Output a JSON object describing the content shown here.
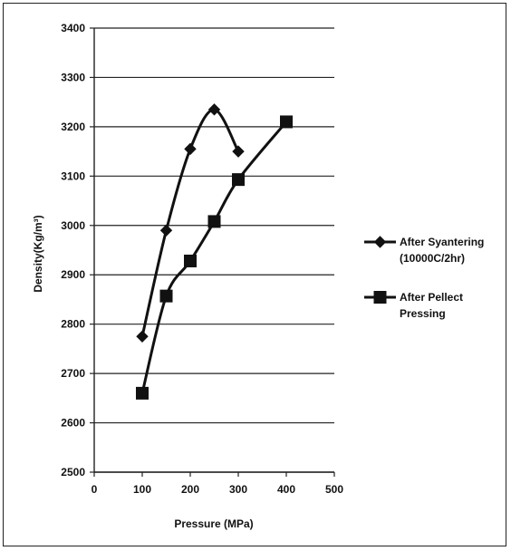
{
  "chart_data": {
    "type": "line",
    "title": "",
    "xlabel": "Pressure (MPa)",
    "ylabel": "Density(Kg/m³)",
    "xlim": [
      0,
      500
    ],
    "ylim": [
      2500,
      3400
    ],
    "x_ticks": [
      "0",
      "100",
      "200",
      "300",
      "400",
      "500"
    ],
    "y_ticks": [
      "2500",
      "2600",
      "2700",
      "2800",
      "2900",
      "3000",
      "3100",
      "3200",
      "3300",
      "3400"
    ],
    "grid": "horizontal",
    "legend_position": "right",
    "series": [
      {
        "name": "After Syantering (10000C/2hr)",
        "marker": "diamond",
        "color": "#111111",
        "x": [
          100,
          150,
          200,
          250,
          300
        ],
        "y": [
          2775,
          2990,
          3155,
          3235,
          3150
        ]
      },
      {
        "name": "After Pellect Pressing",
        "marker": "square",
        "color": "#111111",
        "x": [
          100,
          150,
          200,
          250,
          300,
          400
        ],
        "y": [
          2660,
          2857,
          2928,
          3008,
          3093,
          3210
        ]
      }
    ],
    "legend_lines": [
      [
        "After Syantering",
        "(10000C/2hr)"
      ],
      [
        "After Pellect",
        "Pressing"
      ]
    ]
  }
}
